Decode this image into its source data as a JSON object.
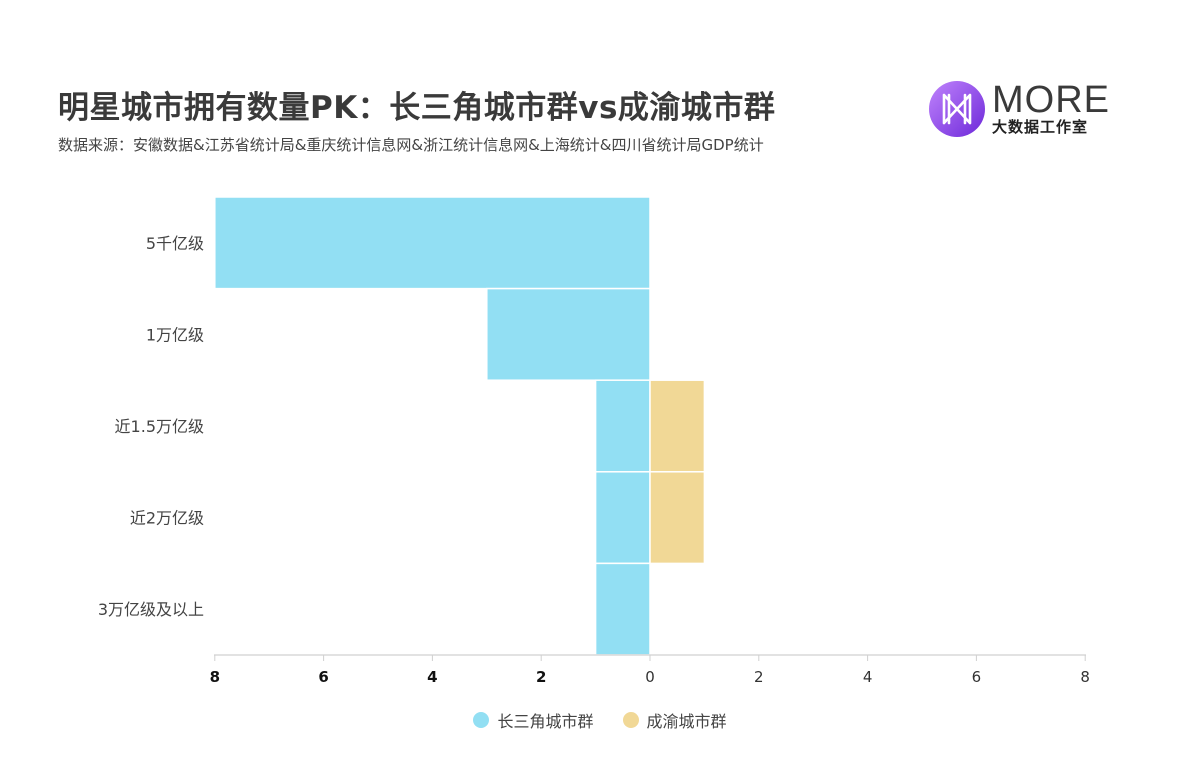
{
  "header": {
    "title": "明星城市拥有数量PK：长三角城市群vs成渝城市群",
    "source": "数据来源：安徽数据&江苏省统计局&重庆统计信息网&浙江统计信息网&上海统计&四川省统计局GDP统计"
  },
  "logo": {
    "text": "MORE",
    "subtitle": "大数据工作室",
    "icon": "more-logo-icon",
    "gradient": [
      "#a855f7",
      "#6d28d9"
    ]
  },
  "chart_data": {
    "type": "bar",
    "orientation": "horizontal-butterfly",
    "categories": [
      "5千亿级",
      "1万亿级",
      "近1.5万亿级",
      "近2万亿级",
      "3万亿级及以上"
    ],
    "series": [
      {
        "name": "长三角城市群",
        "values": [
          8,
          3,
          1,
          1,
          1
        ],
        "color": "#92dff3",
        "side": "left"
      },
      {
        "name": "成渝城市群",
        "values": [
          0,
          0,
          1,
          1,
          0
        ],
        "color": "#f1d896",
        "side": "right"
      }
    ],
    "x_ticks_left": [
      "8",
      "6",
      "4",
      "2"
    ],
    "x_ticks_right": [
      "0",
      "2",
      "4",
      "6",
      "8"
    ],
    "xlim": [
      -8,
      8
    ],
    "legend_position": "bottom-center",
    "grid": false
  }
}
